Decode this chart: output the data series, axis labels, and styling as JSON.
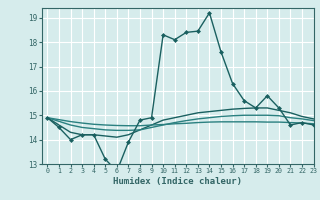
{
  "title": "",
  "xlabel": "Humidex (Indice chaleur)",
  "xlim": [
    -0.5,
    23
  ],
  "ylim": [
    13,
    19.4
  ],
  "yticks": [
    13,
    14,
    15,
    16,
    17,
    18,
    19
  ],
  "xticks": [
    0,
    1,
    2,
    3,
    4,
    5,
    6,
    7,
    8,
    9,
    10,
    11,
    12,
    13,
    14,
    15,
    16,
    17,
    18,
    19,
    20,
    21,
    22,
    23
  ],
  "bg_color": "#d6ecec",
  "grid_color": "#ffffff",
  "spine_color": "#336666",
  "tick_color": "#336666",
  "curves": [
    {
      "x": [
        0,
        1,
        2,
        3,
        4,
        5,
        6,
        7,
        8,
        9,
        10,
        11,
        12,
        13,
        14,
        15,
        16,
        17,
        18,
        19,
        20,
        21,
        22,
        23
      ],
      "y": [
        14.9,
        14.5,
        14.0,
        14.2,
        14.2,
        13.2,
        12.7,
        13.9,
        14.8,
        14.9,
        18.3,
        18.1,
        18.4,
        18.45,
        19.2,
        17.6,
        16.3,
        15.6,
        15.3,
        15.8,
        15.3,
        14.6,
        14.7,
        14.6
      ],
      "color": "#1a6060",
      "lw": 1.0,
      "marker": "D",
      "ms": 2.0
    },
    {
      "x": [
        0,
        1,
        2,
        3,
        4,
        5,
        6,
        7,
        8,
        9,
        10,
        11,
        12,
        13,
        14,
        15,
        16,
        17,
        18,
        19,
        20,
        21,
        22,
        23
      ],
      "y": [
        14.9,
        14.6,
        14.3,
        14.2,
        14.2,
        14.15,
        14.1,
        14.2,
        14.4,
        14.6,
        14.8,
        14.9,
        15.0,
        15.1,
        15.15,
        15.2,
        15.25,
        15.28,
        15.3,
        15.3,
        15.2,
        15.1,
        14.95,
        14.85
      ],
      "color": "#1a6060",
      "lw": 1.0,
      "marker": null,
      "ms": 0
    },
    {
      "x": [
        0,
        1,
        2,
        3,
        4,
        5,
        6,
        7,
        8,
        9,
        10,
        11,
        12,
        13,
        14,
        15,
        16,
        17,
        18,
        19,
        20,
        21,
        22,
        23
      ],
      "y": [
        14.9,
        14.75,
        14.6,
        14.5,
        14.45,
        14.4,
        14.38,
        14.38,
        14.4,
        14.5,
        14.6,
        14.7,
        14.78,
        14.85,
        14.9,
        14.95,
        14.98,
        15.0,
        15.0,
        15.0,
        14.98,
        14.9,
        14.85,
        14.78
      ],
      "color": "#2a8080",
      "lw": 1.0,
      "marker": null,
      "ms": 0
    },
    {
      "x": [
        0,
        1,
        2,
        3,
        4,
        5,
        6,
        7,
        8,
        9,
        10,
        11,
        12,
        13,
        14,
        15,
        16,
        17,
        18,
        19,
        20,
        21,
        22,
        23
      ],
      "y": [
        14.9,
        14.82,
        14.74,
        14.68,
        14.63,
        14.6,
        14.58,
        14.57,
        14.57,
        14.6,
        14.62,
        14.65,
        14.67,
        14.7,
        14.72,
        14.73,
        14.73,
        14.73,
        14.73,
        14.72,
        14.72,
        14.7,
        14.68,
        14.65
      ],
      "color": "#2a8080",
      "lw": 1.0,
      "marker": null,
      "ms": 0
    }
  ]
}
